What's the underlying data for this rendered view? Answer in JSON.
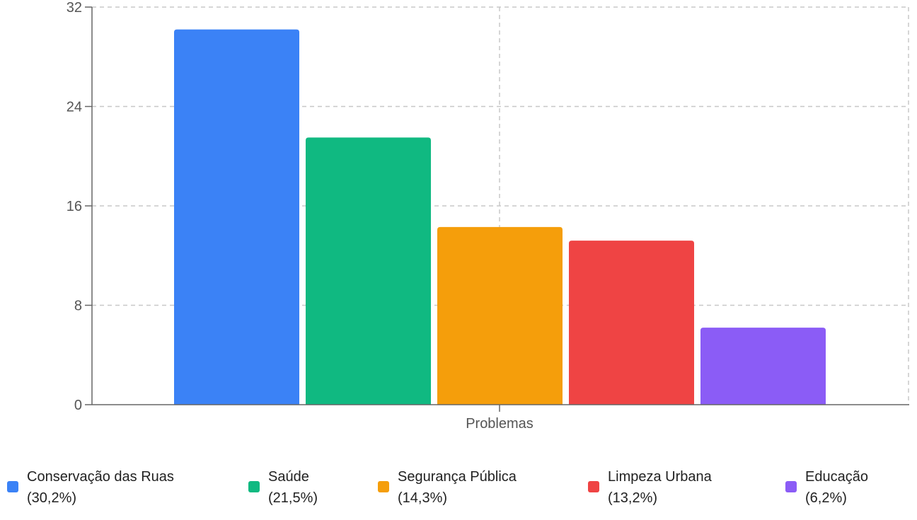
{
  "chart_data": {
    "type": "bar",
    "xlabel": "",
    "ylabel": "",
    "categories": [
      "Problemas"
    ],
    "ylim": [
      0,
      32
    ],
    "yticks": [
      0,
      8,
      16,
      24,
      32
    ],
    "grid": true,
    "legend_position": "bottom",
    "series": [
      {
        "name": "Conservação das Ruas",
        "percent_label": "(30,2%)",
        "values": [
          30.2
        ],
        "color": "#3b82f6"
      },
      {
        "name": "Saúde",
        "percent_label": "(21,5%)",
        "values": [
          21.5
        ],
        "color": "#10b981"
      },
      {
        "name": "Segurança Pública",
        "percent_label": "(14,3%)",
        "values": [
          14.3
        ],
        "color": "#f59e0b"
      },
      {
        "name": "Limpeza Urbana",
        "percent_label": "(13,2%)",
        "values": [
          13.2
        ],
        "color": "#ef4444"
      },
      {
        "name": "Educação",
        "percent_label": "(6,2%)",
        "values": [
          6.2
        ],
        "color": "#8b5cf6"
      }
    ]
  }
}
